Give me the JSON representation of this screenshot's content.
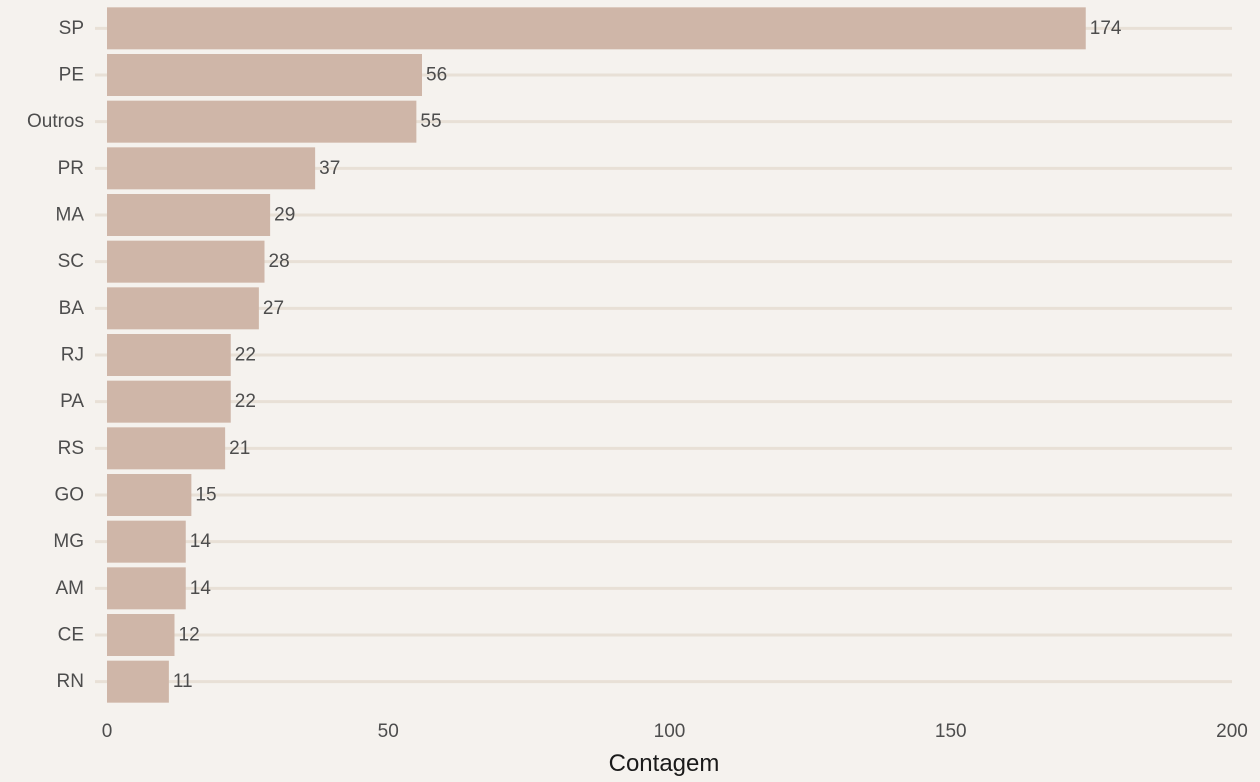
{
  "chart_data": {
    "type": "bar",
    "orientation": "horizontal",
    "categories": [
      "SP",
      "PE",
      "Outros",
      "PR",
      "MA",
      "SC",
      "BA",
      "RJ",
      "PA",
      "RS",
      "GO",
      "MG",
      "AM",
      "CE",
      "RN"
    ],
    "values": [
      174,
      56,
      55,
      37,
      29,
      28,
      27,
      22,
      22,
      21,
      15,
      14,
      14,
      12,
      11
    ],
    "value_labels": [
      "174",
      "56",
      "55",
      "37",
      "29",
      "28",
      "27",
      "22",
      "22",
      "21",
      "15",
      "14",
      "14",
      "12",
      "11"
    ],
    "xlabel": "Contagem",
    "ylabel": "",
    "xlim": [
      0,
      200
    ],
    "xticks": [
      0,
      50,
      100,
      150,
      200
    ],
    "xtick_labels": [
      "0",
      "50",
      "100",
      "150",
      "200"
    ],
    "grid": true,
    "legend": "none"
  },
  "colors": {
    "background": "#f5f2ee",
    "bar": "#cfb6a8",
    "grid": "#e8e0d6",
    "text": "#4d4d4d",
    "title": "#1a1a1a"
  }
}
